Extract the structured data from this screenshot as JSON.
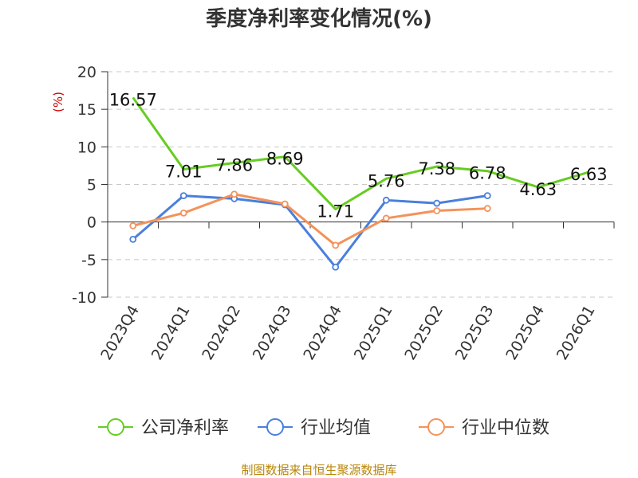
{
  "chart_data": {
    "type": "line",
    "title": "季度净利率变化情况(%)",
    "ylabel": "(%)",
    "ylim": [
      -10,
      20
    ],
    "yticks": [
      20,
      15,
      10,
      5,
      0,
      -5,
      -10
    ],
    "grid": true,
    "legend_position": "bottom",
    "categories": [
      "2023Q4",
      "2024Q1",
      "2024Q2",
      "2024Q3",
      "2024Q4",
      "2025Q1",
      "2025Q2",
      "2025Q3",
      "2025Q4",
      "2026Q1"
    ],
    "series": [
      {
        "name": "公司净利率",
        "color": "#66cc22",
        "values": [
          16.57,
          7.01,
          7.86,
          8.69,
          1.71,
          5.76,
          7.38,
          6.78,
          4.63,
          6.63
        ],
        "labels": [
          "16.57",
          "7.01",
          "7.86",
          "8.69",
          "1.71",
          "5.76",
          "7.38",
          "6.78",
          "4.63",
          "6.63"
        ]
      },
      {
        "name": "行业均值",
        "color": "#4a7fdc",
        "values": [
          -2.3,
          3.5,
          3.1,
          2.3,
          -6.0,
          2.9,
          2.5,
          3.5,
          null,
          null
        ]
      },
      {
        "name": "行业中位数",
        "color": "#f4925a",
        "values": [
          -0.5,
          1.2,
          3.7,
          2.4,
          -3.1,
          0.5,
          1.5,
          1.8,
          null,
          null
        ]
      }
    ],
    "source": "制图数据来自恒生聚源数据库"
  }
}
